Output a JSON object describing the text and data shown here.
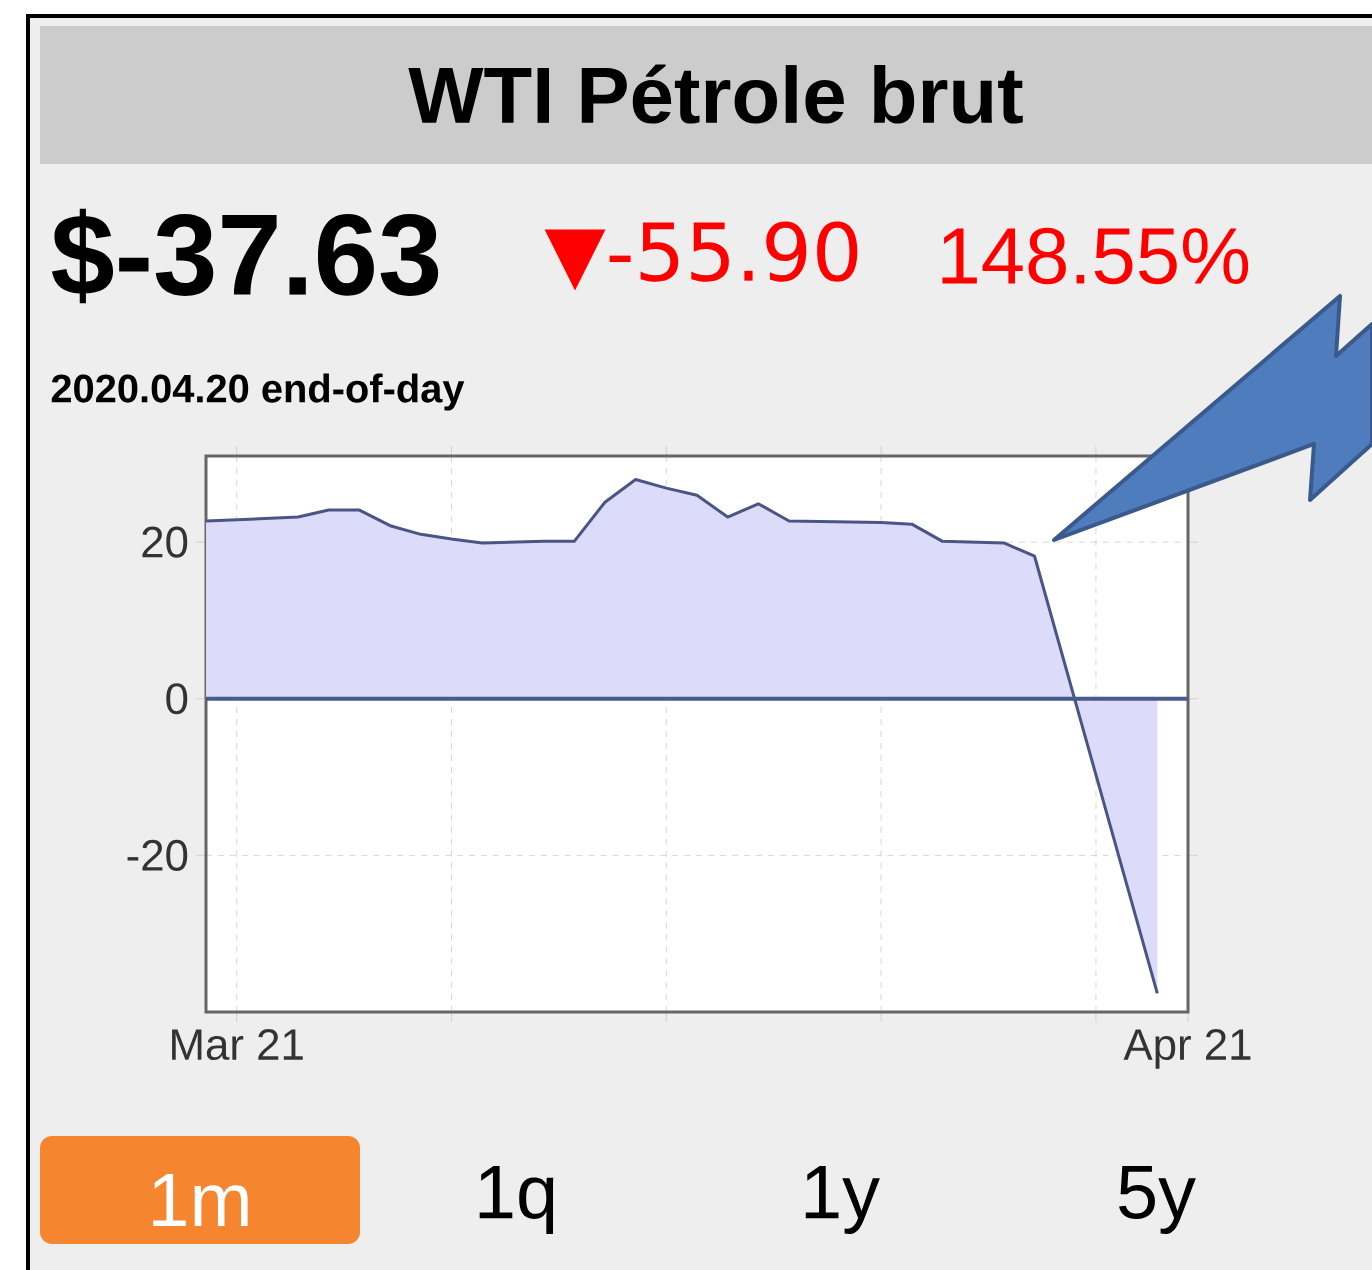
{
  "chart_data": {
    "type": "area",
    "title": "WTI Pétrole brut",
    "annotations": [
      "$-37.63",
      "▼-55.90",
      "148.55%",
      "2020.04.20 end-of-day",
      "1m",
      "1q",
      "1y",
      "5y"
    ],
    "x": [
      "2020-03-20",
      "2020-03-23",
      "2020-03-24",
      "2020-03-25",
      "2020-03-26",
      "2020-03-27",
      "2020-03-28",
      "2020-03-29",
      "2020-03-31",
      "2020-04-01",
      "2020-04-02",
      "2020-04-03",
      "2020-04-04",
      "2020-04-05",
      "2020-04-06",
      "2020-04-07",
      "2020-04-08",
      "2020-04-11",
      "2020-04-12",
      "2020-04-13",
      "2020-04-15",
      "2020-04-16",
      "2020-04-20"
    ],
    "values": [
      22.7,
      23.2,
      24.1,
      24.1,
      22.1,
      21.0,
      20.4,
      19.9,
      20.1,
      20.1,
      25.1,
      28.0,
      26.9,
      26.0,
      23.2,
      24.9,
      22.7,
      22.5,
      22.3,
      20.1,
      19.9,
      18.2,
      -37.63
    ],
    "color": "#dcdcfa",
    "xlim": [
      "2020-03-20",
      "2020-04-21"
    ],
    "xticks": [
      {
        "value": "2020-03-21",
        "label": "Mar 21"
      },
      {
        "value": "2020-03-28",
        "label": null
      },
      {
        "value": "2020-04-04",
        "label": null
      },
      {
        "value": "2020-04-11",
        "label": null
      },
      {
        "value": "2020-04-18",
        "label": null
      },
      {
        "value": "2020-04-21",
        "label": "Apr 21"
      }
    ],
    "ylim": [
      -40,
      31
    ],
    "yticks": [
      -20,
      0,
      20
    ],
    "grid": true,
    "ref_lines": [
      {
        "axis": "y",
        "value": 0,
        "color": "#4a5a8c"
      }
    ]
  }
}
